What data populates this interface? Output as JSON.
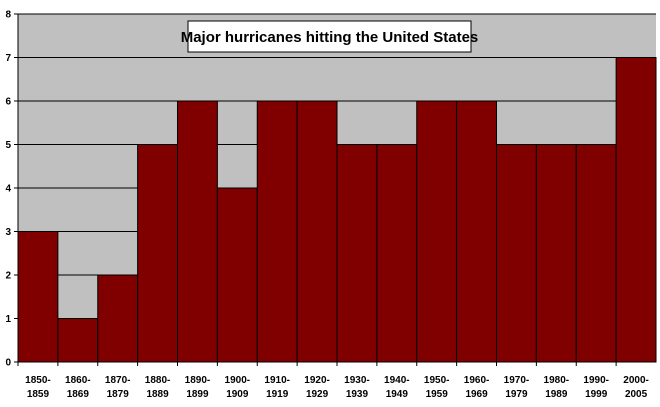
{
  "chart_data": {
    "type": "bar",
    "title": "Major hurricanes hitting the United States",
    "xlabel": "",
    "ylabel": "",
    "ylim": [
      0,
      8
    ],
    "yticks": [
      "0",
      "1",
      "2",
      "3",
      "4",
      "5",
      "6",
      "7",
      "8"
    ],
    "grid": true,
    "legend": "none",
    "categories": [
      {
        "line1": "1850-",
        "line2": "1859"
      },
      {
        "line1": "1860-",
        "line2": "1869"
      },
      {
        "line1": "1870-",
        "line2": "1879"
      },
      {
        "line1": "1880-",
        "line2": "1889"
      },
      {
        "line1": "1890-",
        "line2": "1899"
      },
      {
        "line1": "1900-",
        "line2": "1909"
      },
      {
        "line1": "1910-",
        "line2": "1919"
      },
      {
        "line1": "1920-",
        "line2": "1929"
      },
      {
        "line1": "1930-",
        "line2": "1939"
      },
      {
        "line1": "1940-",
        "line2": "1949"
      },
      {
        "line1": "1950-",
        "line2": "1959"
      },
      {
        "line1": "1960-",
        "line2": "1969"
      },
      {
        "line1": "1970-",
        "line2": "1979"
      },
      {
        "line1": "1980-",
        "line2": "1989"
      },
      {
        "line1": "1990-",
        "line2": "1999"
      },
      {
        "line1": "2000-",
        "line2": "2005"
      }
    ],
    "values": [
      3,
      1,
      2,
      5,
      6,
      4,
      6,
      6,
      5,
      5,
      6,
      6,
      5,
      5,
      5,
      7
    ],
    "colors": {
      "bar": "#800000",
      "bar_edge": "#000000",
      "plot_background": "#c0c0c0",
      "gridline": "#000000",
      "title_box": "#ffffff"
    }
  }
}
